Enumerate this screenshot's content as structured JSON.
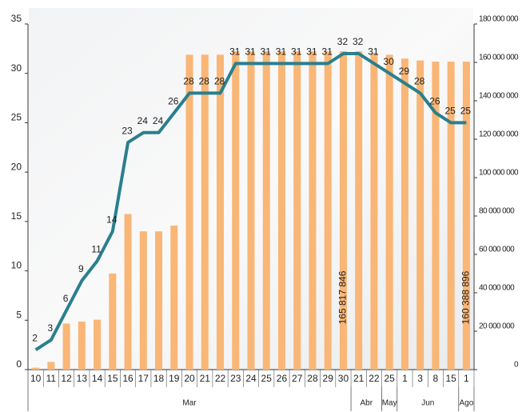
{
  "chart_data": {
    "type": "bar-line",
    "categories": [
      "10",
      "11",
      "12",
      "13",
      "14",
      "15",
      "16",
      "17",
      "18",
      "19",
      "20",
      "21",
      "22",
      "23",
      "24",
      "25",
      "26",
      "27",
      "28",
      "29",
      "30",
      "21",
      "22",
      "25",
      "1",
      "3",
      "8",
      "15",
      "1"
    ],
    "groups": [
      {
        "label": "Mar",
        "start": 0,
        "end": 20
      },
      {
        "label": "Abr",
        "start": 21,
        "end": 22
      },
      {
        "label": "May",
        "start": 23,
        "end": 23
      },
      {
        "label": "Jun",
        "start": 24,
        "end": 27
      },
      {
        "label": "Ago",
        "start": 28,
        "end": 28
      }
    ],
    "series": [
      {
        "color": "#f9b676",
        "axis": "y2",
        "kind": "bar",
        "values": [
          1000000,
          4000000,
          24000000,
          25000000,
          26000000,
          50000000,
          81000000,
          72000000,
          72000000,
          75000000,
          164000000,
          164000000,
          164000000,
          165800000,
          165800000,
          165800000,
          165800000,
          165800000,
          165800000,
          165800000,
          165817846,
          165800000,
          165000000,
          164000000,
          162000000,
          161000000,
          160400000,
          160400000,
          160388896
        ],
        "value_labels": [
          null,
          null,
          null,
          null,
          null,
          null,
          null,
          null,
          null,
          null,
          null,
          null,
          null,
          null,
          null,
          null,
          null,
          null,
          null,
          null,
          "165 817 846",
          null,
          null,
          null,
          null,
          null,
          null,
          null,
          "160 388 896"
        ]
      },
      {
        "color": "#2a7f8e",
        "kind": "line",
        "values": [
          2,
          3,
          6,
          9,
          11,
          14,
          23,
          24,
          24,
          26,
          28,
          28,
          28,
          31,
          31,
          31,
          31,
          31,
          31,
          31,
          32,
          32,
          31,
          30,
          29,
          28,
          26,
          25,
          25
        ]
      }
    ],
    "ylim": [
      0,
      35
    ],
    "yticks": [
      0,
      5,
      10,
      15,
      20,
      25,
      30,
      35
    ],
    "y2lim": [
      0,
      180000000
    ],
    "y2ticks": [
      0,
      {
        "value": 20000000,
        "label": "20 000 000"
      },
      {
        "value": 40000000,
        "label": "40 000 000"
      },
      {
        "value": 60000000,
        "label": "60 000 000"
      },
      {
        "value": 80000000,
        "label": "80 000 000"
      },
      {
        "value": 100000000,
        "label": "100 000 000"
      },
      {
        "value": 120000000,
        "label": "120 000 000"
      },
      {
        "value": 140000000,
        "label": "140 000 000"
      },
      {
        "value": 160000000,
        "label": "160 000 000"
      },
      {
        "value": 180000000,
        "label": "180 000 000"
      }
    ]
  }
}
